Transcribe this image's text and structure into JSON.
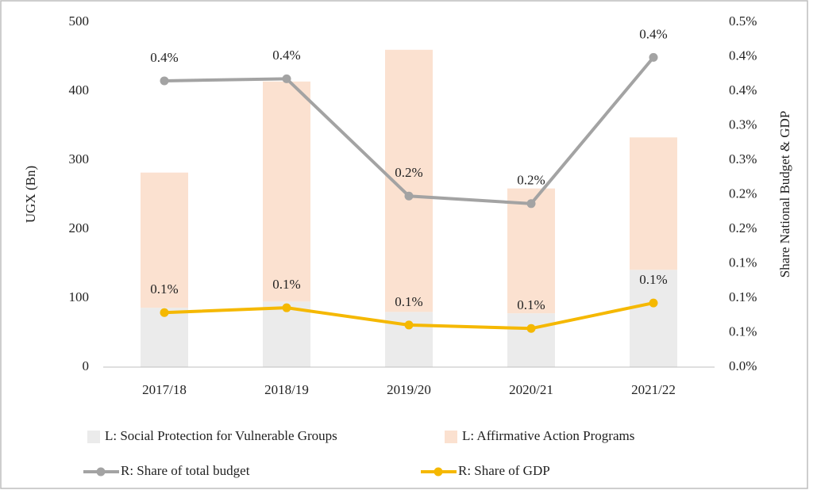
{
  "chart_data": {
    "type": "bar",
    "categories": [
      "2017/18",
      "2018/19",
      "2019/20",
      "2020/21",
      "2021/22"
    ],
    "ylabel": "UGX (Bn)",
    "y2label": "Share National Budget & GDP",
    "ylim": [
      0,
      500
    ],
    "yticks": [
      0,
      100,
      200,
      300,
      400,
      500
    ],
    "y2lim": [
      0,
      0.5
    ],
    "y2ticks": [
      {
        "value": 0,
        "label": "0.0%"
      },
      {
        "value": 0.05,
        "label": "0.1%"
      },
      {
        "value": 0.1,
        "label": "0.1%"
      },
      {
        "value": 0.15,
        "label": "0.1%"
      },
      {
        "value": 0.2,
        "label": "0.2%"
      },
      {
        "value": 0.25,
        "label": "0.2%"
      },
      {
        "value": 0.3,
        "label": "0.3%"
      },
      {
        "value": 0.35,
        "label": "0.3%"
      },
      {
        "value": 0.4,
        "label": "0.4%"
      },
      {
        "value": 0.45,
        "label": "0.4%"
      },
      {
        "value": 0.5,
        "label": "0.5%"
      }
    ],
    "series": [
      {
        "name": "L: Social Protection for Vulnerable Groups",
        "type": "bar",
        "color": "#ebebeb",
        "values": [
          86,
          95,
          80,
          78,
          141
        ]
      },
      {
        "name": "L: Affirmative Action Programs",
        "type": "bar",
        "color": "#fbe1d0",
        "values": [
          196,
          319,
          380,
          181,
          192
        ]
      },
      {
        "name": "R: Share of total budget",
        "type": "line",
        "axis": "y2",
        "color": "#a3a3a3",
        "values": [
          0.415,
          0.418,
          0.248,
          0.237,
          0.449
        ],
        "value_labels": [
          "0.4%",
          "0.4%",
          "0.2%",
          "0.2%",
          "0.4%"
        ]
      },
      {
        "name": "R: Share of GDP",
        "type": "line",
        "axis": "y2",
        "color": "#f5b800",
        "values": [
          0.079,
          0.086,
          0.061,
          0.056,
          0.093
        ],
        "value_labels": [
          "0.1%",
          "0.1%",
          "0.1%",
          "0.1%",
          "0.1%"
        ]
      }
    ]
  }
}
